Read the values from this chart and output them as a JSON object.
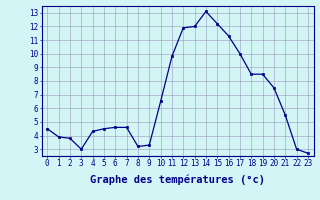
{
  "hours": [
    0,
    1,
    2,
    3,
    4,
    5,
    6,
    7,
    8,
    9,
    10,
    11,
    12,
    13,
    14,
    15,
    16,
    17,
    18,
    19,
    20,
    21,
    22,
    23
  ],
  "temperatures": [
    4.5,
    3.9,
    3.8,
    3.0,
    4.3,
    4.5,
    4.6,
    4.6,
    3.2,
    3.3,
    6.5,
    9.8,
    11.9,
    12.0,
    13.1,
    12.2,
    11.3,
    10.0,
    8.5,
    8.5,
    7.5,
    5.5,
    3.0,
    2.7
  ],
  "x_hours": [
    0,
    1,
    2,
    3,
    4,
    5,
    6,
    7,
    8,
    9,
    10,
    11,
    12,
    13,
    14,
    15,
    16,
    17,
    18,
    19,
    20,
    21,
    22,
    23
  ],
  "xlim": [
    -0.5,
    23.5
  ],
  "ylim": [
    2.5,
    13.5
  ],
  "yticks": [
    3,
    4,
    5,
    6,
    7,
    8,
    9,
    10,
    11,
    12,
    13
  ],
  "xtick_labels": [
    "0",
    "1",
    "2",
    "3",
    "4",
    "5",
    "6",
    "7",
    "8",
    "9",
    "10",
    "11",
    "12",
    "13",
    "14",
    "15",
    "16",
    "17",
    "18",
    "19",
    "20",
    "21",
    "22",
    "23"
  ],
  "xlabel": "Graphe des températures (°c)",
  "line_color": "#00008b",
  "marker_color": "#00008b",
  "bg_color": "#d4f5f5",
  "grid_color": "#9999bb",
  "axis_label_color": "#00008b",
  "tick_fontsize": 5.5,
  "xlabel_fontsize": 7.5
}
